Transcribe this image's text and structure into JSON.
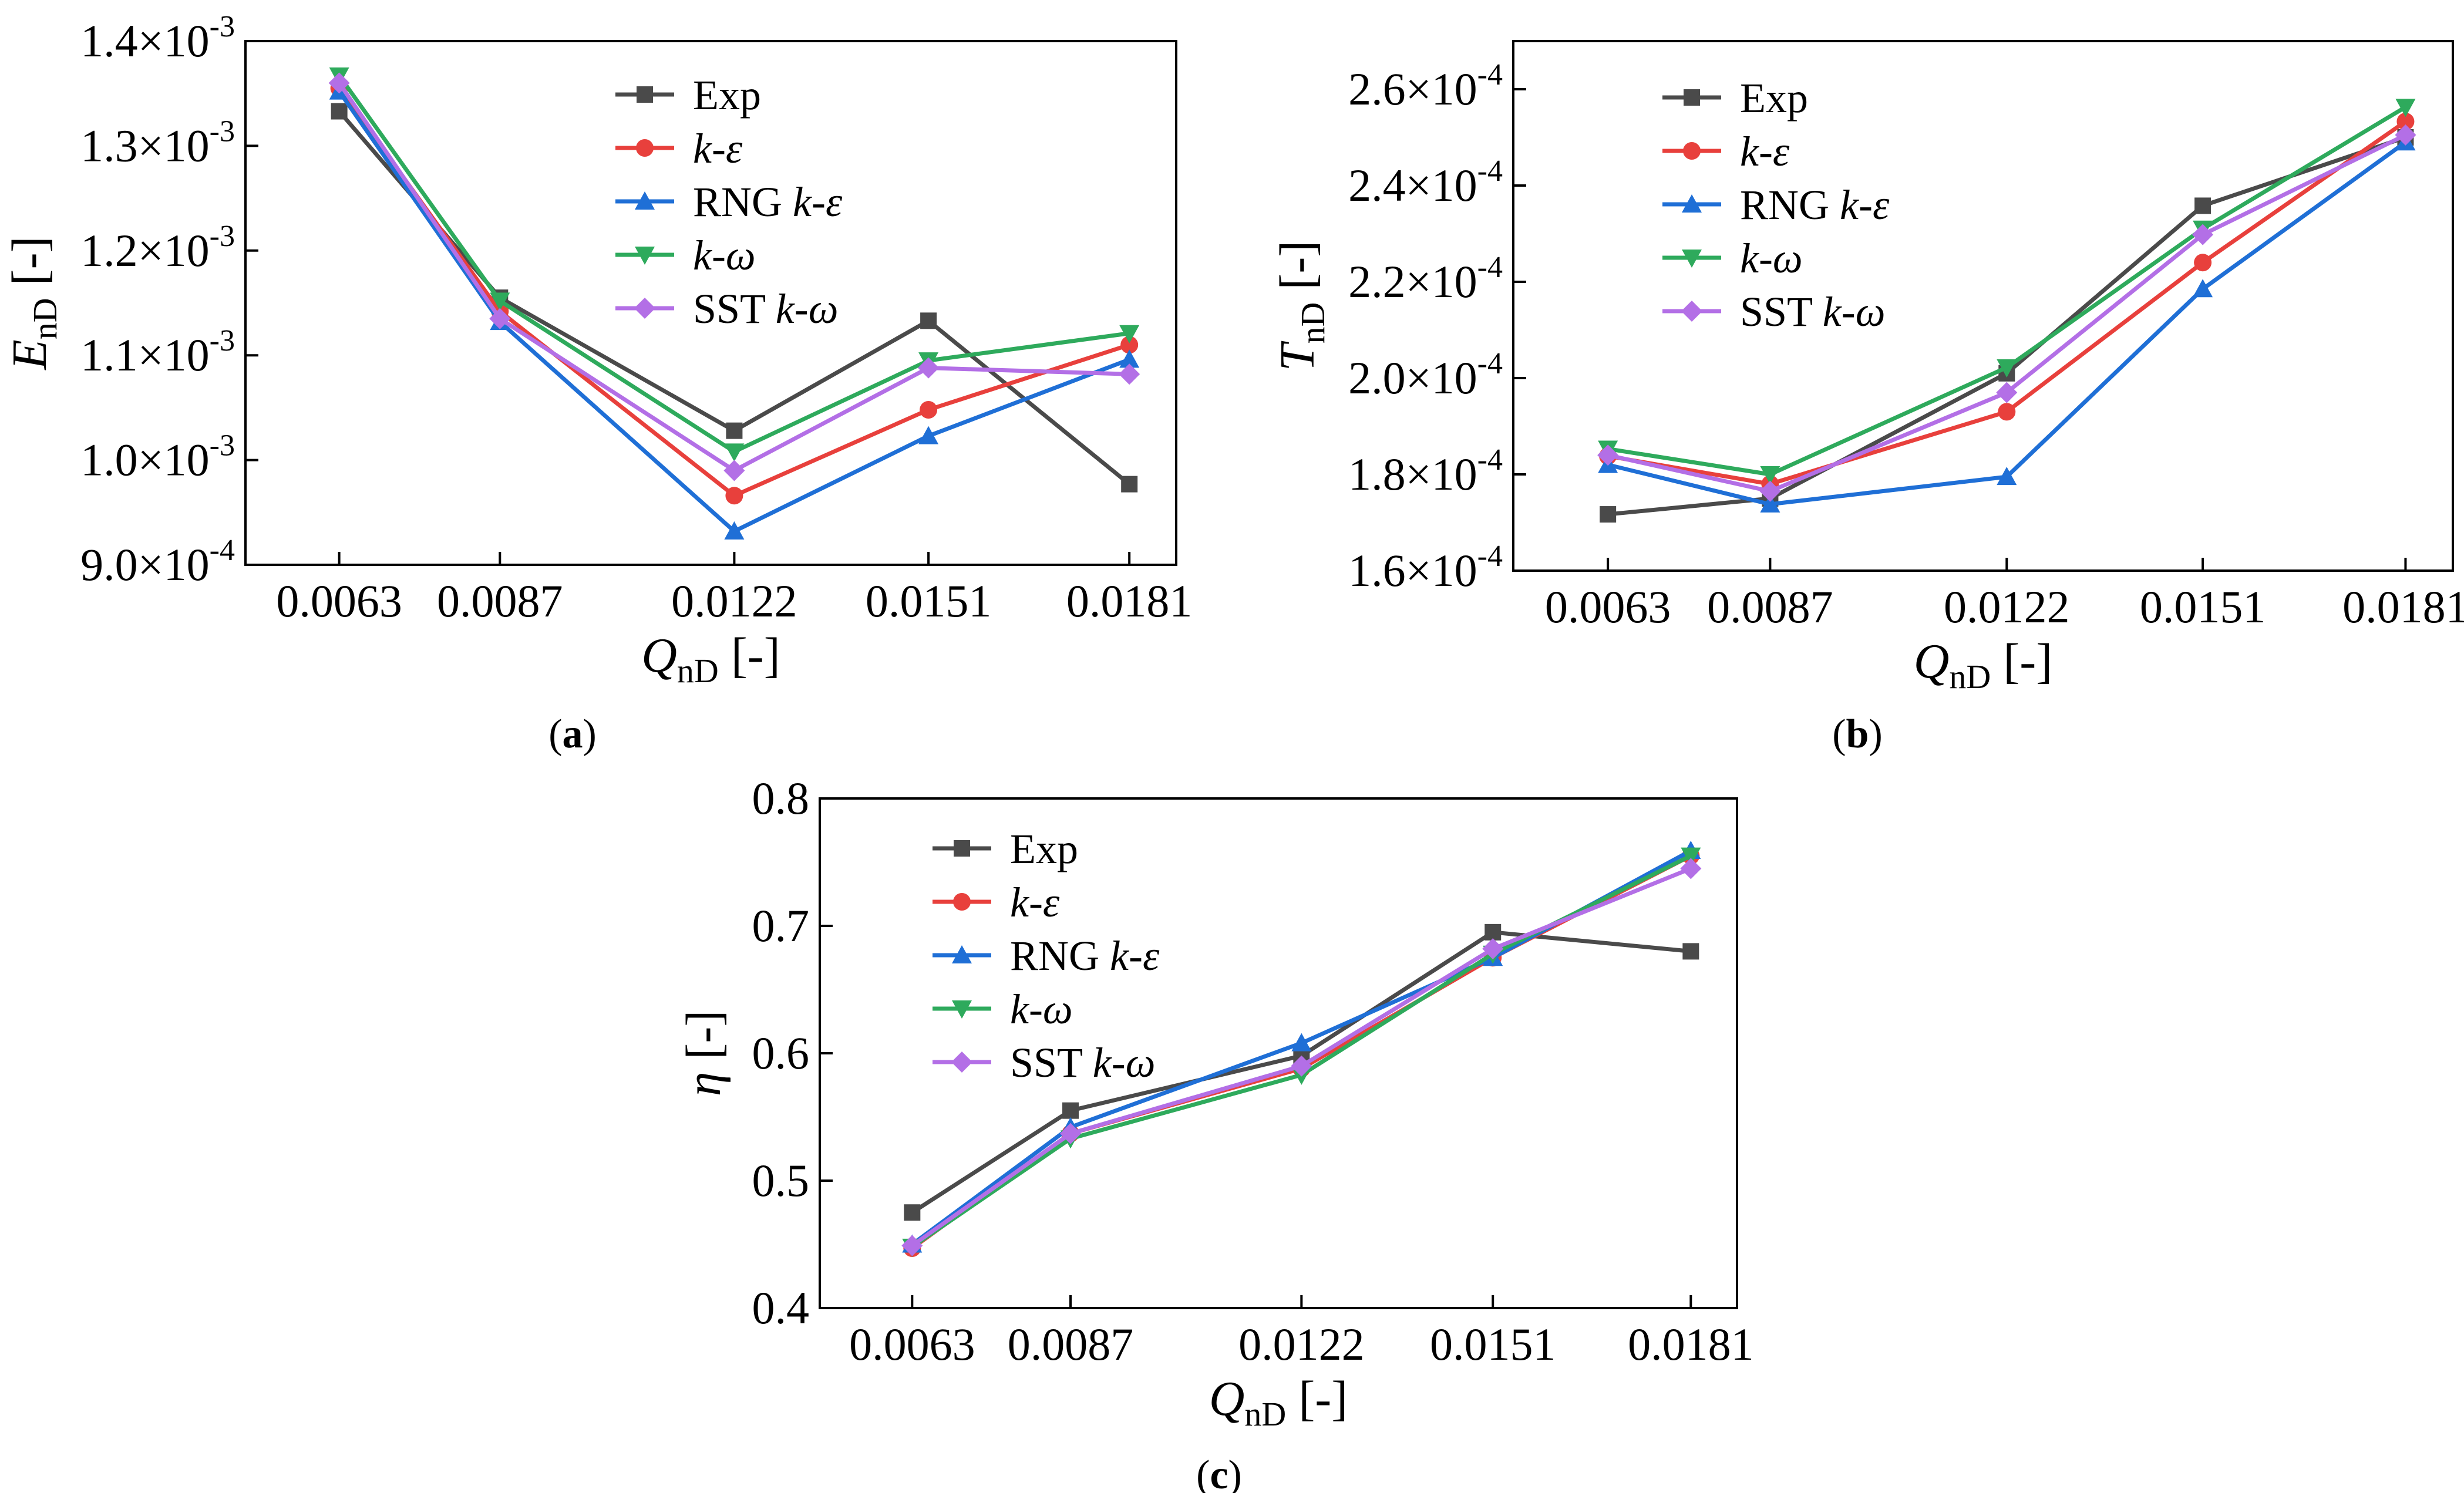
{
  "chart_data": [
    {
      "type": "line",
      "panel_label": "(a)",
      "ylabel_symbol": "E",
      "ylabel_sub": "nD",
      "ylabel_unit": "[-]",
      "xlabel_symbol": "Q",
      "xlabel_sub": "nD",
      "xlabel_unit": "[-]",
      "x": [
        0.0063,
        0.0087,
        0.0122,
        0.0151,
        0.0181
      ],
      "xlim": [
        0.0049,
        0.0188
      ],
      "ylim": [
        0.0009,
        0.0014
      ],
      "yticks": [
        0.0009,
        0.001,
        0.0011,
        0.0012,
        0.0013,
        0.0014
      ],
      "ytick_labels": [
        {
          "mant": "9.0×10",
          "exp": "-4"
        },
        {
          "mant": "1.0×10",
          "exp": "-3"
        },
        {
          "mant": "1.1×10",
          "exp": "-3"
        },
        {
          "mant": "1.2×10",
          "exp": "-3"
        },
        {
          "mant": "1.3×10",
          "exp": "-3"
        },
        {
          "mant": "1.4×10",
          "exp": "-3"
        }
      ],
      "xtick_labels": [
        "0.0063",
        "0.0087",
        "0.0122",
        "0.0151",
        "0.0181"
      ],
      "legend_position": "top-right",
      "series": [
        {
          "name": "Exp",
          "values": [
            0.001333,
            0.001155,
            0.001028,
            0.001133,
            0.000977
          ]
        },
        {
          "name": "k-ε",
          "values": [
            0.001355,
            0.001142,
            0.000966,
            0.001048,
            0.00111
          ]
        },
        {
          "name": "RNG k-ε",
          "values": [
            0.001352,
            0.001132,
            0.000932,
            0.001023,
            0.001096
          ]
        },
        {
          "name": "k-ω",
          "values": [
            0.001367,
            0.001152,
            0.001008,
            0.001095,
            0.001121
          ]
        },
        {
          "name": "SST k-ω",
          "values": [
            0.00136,
            0.001135,
            0.00099,
            0.001088,
            0.001082
          ]
        }
      ]
    },
    {
      "type": "line",
      "panel_label": "(b)",
      "ylabel_symbol": "T",
      "ylabel_sub": "nD",
      "ylabel_unit": "[-]",
      "xlabel_symbol": "Q",
      "xlabel_sub": "nD",
      "xlabel_unit": "[-]",
      "x": [
        0.0063,
        0.0087,
        0.0122,
        0.0151,
        0.0181
      ],
      "xlim": [
        0.0049,
        0.0188
      ],
      "ylim": [
        0.00016,
        0.00027
      ],
      "yticks": [
        0.00016,
        0.00018,
        0.0002,
        0.00022,
        0.00024,
        0.00026
      ],
      "ytick_labels": [
        {
          "mant": "1.6×10",
          "exp": "-4"
        },
        {
          "mant": "1.8×10",
          "exp": "-4"
        },
        {
          "mant": "2.0×10",
          "exp": "-4"
        },
        {
          "mant": "2.2×10",
          "exp": "-4"
        },
        {
          "mant": "2.4×10",
          "exp": "-4"
        },
        {
          "mant": "2.6×10",
          "exp": "-4"
        }
      ],
      "xtick_labels": [
        "0.0063",
        "0.0087",
        "0.0122",
        "0.0151",
        "0.0181"
      ],
      "legend_position": "top-left",
      "series": [
        {
          "name": "Exp",
          "values": [
            0.0001717,
            0.000175,
            0.000201,
            0.0002358,
            0.00025
          ]
        },
        {
          "name": "k-ε",
          "values": [
            0.0001838,
            0.000178,
            0.000193,
            0.000224,
            0.0002533
          ]
        },
        {
          "name": "RNG k-ε",
          "values": [
            0.000182,
            0.0001738,
            0.0001795,
            0.0002185,
            0.000249
          ]
        },
        {
          "name": "k-ω",
          "values": [
            0.0001853,
            0.00018,
            0.0002022,
            0.000231,
            0.0002563
          ]
        },
        {
          "name": "SST k-ω",
          "values": [
            0.000184,
            0.0001765,
            0.000197,
            0.0002298,
            0.0002505
          ]
        }
      ]
    },
    {
      "type": "line",
      "panel_label": "(c)",
      "ylabel_symbol": "η",
      "ylabel_sub": "",
      "ylabel_unit": "[-]",
      "xlabel_symbol": "Q",
      "xlabel_sub": "nD",
      "xlabel_unit": "[-]",
      "x": [
        0.0063,
        0.0087,
        0.0122,
        0.0151,
        0.0181
      ],
      "xlim": [
        0.0049,
        0.0188
      ],
      "ylim": [
        0.4,
        0.8
      ],
      "yticks": [
        0.4,
        0.5,
        0.6,
        0.7,
        0.8
      ],
      "ytick_labels": [
        {
          "mant": "0.4",
          "exp": ""
        },
        {
          "mant": "0.5",
          "exp": ""
        },
        {
          "mant": "0.6",
          "exp": ""
        },
        {
          "mant": "0.7",
          "exp": ""
        },
        {
          "mant": "0.8",
          "exp": ""
        }
      ],
      "xtick_labels": [
        "0.0063",
        "0.0087",
        "0.0122",
        "0.0151",
        "0.0181"
      ],
      "legend_position": "top-left",
      "series": [
        {
          "name": "Exp",
          "values": [
            0.475,
            0.555,
            0.598,
            0.695,
            0.68
          ]
        },
        {
          "name": "k-ε",
          "values": [
            0.447,
            0.537,
            0.588,
            0.675,
            0.755
          ]
        },
        {
          "name": "RNG k-ε",
          "values": [
            0.45,
            0.542,
            0.608,
            0.675,
            0.759
          ]
        },
        {
          "name": "k-ω",
          "values": [
            0.448,
            0.533,
            0.583,
            0.678,
            0.755
          ]
        },
        {
          "name": "SST k-ω",
          "values": [
            0.449,
            0.537,
            0.59,
            0.682,
            0.745
          ]
        }
      ]
    }
  ],
  "series_styles": [
    {
      "name": "Exp",
      "color": "#4a4a4a",
      "marker": "square",
      "legend_italic_part": "",
      "legend_plain_part": "Exp"
    },
    {
      "name": "k-ε",
      "color": "#e8403c",
      "marker": "circle",
      "legend_plain_part": "",
      "legend_italic_part": "k-ε"
    },
    {
      "name": "RNG k-ε",
      "color": "#1f6fd6",
      "marker": "triangle-up",
      "legend_plain_part": "RNG ",
      "legend_italic_part": "k-ε"
    },
    {
      "name": "k-ω",
      "color": "#2eaa5c",
      "marker": "triangle-down",
      "legend_plain_part": "",
      "legend_italic_part": "k-ω"
    },
    {
      "name": "SST k-ω",
      "color": "#b36fe6",
      "marker": "diamond",
      "legend_plain_part": "SST ",
      "legend_italic_part": "k-ω"
    }
  ]
}
